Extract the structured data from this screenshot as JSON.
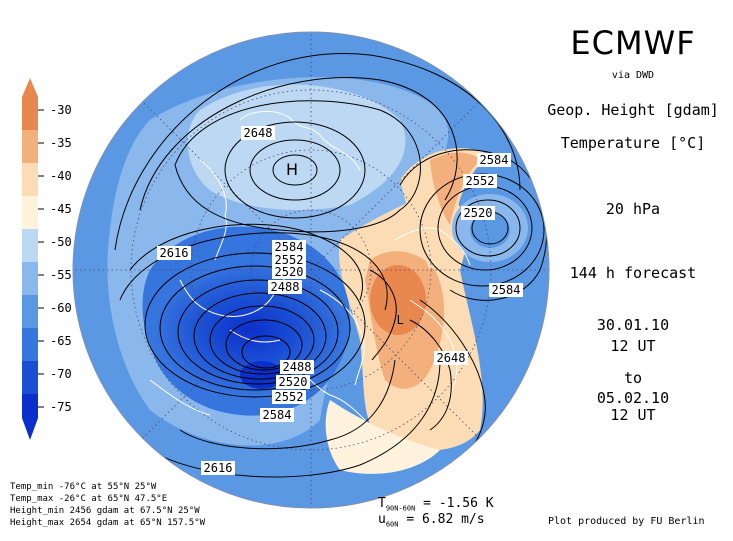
{
  "header": {
    "title": "ECMWF",
    "source": "via DWD",
    "field1": "Geop. Height [gdam]",
    "field2": "Temperature [°C]",
    "level": "20 hPa",
    "forecast": "144 h forecast",
    "init_date": "30.01.10",
    "init_time": "12 UT",
    "to": "to",
    "valid_date": "05.02.10",
    "valid_time": "12 UT"
  },
  "colorbar": {
    "labels": [
      "-30",
      "-35",
      "-40",
      "-45",
      "-50",
      "-55",
      "-60",
      "-65",
      "-70",
      "-75"
    ],
    "colors": [
      "#e8884e",
      "#f4b07c",
      "#fcdcb4",
      "#fff3dd",
      "#bcd8f3",
      "#8ab8ec",
      "#5b98e4",
      "#3674de",
      "#1a4fd4",
      "#0b2fcc"
    ]
  },
  "map": {
    "centers": [
      "H",
      "L"
    ],
    "contour_labels": [
      "2648",
      "2616",
      "2584",
      "2552",
      "2520",
      "2488",
      "2488",
      "2520",
      "2552",
      "2584",
      "2616",
      "2584",
      "2552",
      "2520",
      "2584",
      "2648"
    ],
    "colors": {
      "ocean_cold": "#5b98e4",
      "cold_core": "#1a4fd4",
      "warm_core": "#e8884e",
      "coastline": "#ffffff"
    }
  },
  "stats": {
    "temp_min": "Temp_min -76°C at 55°N 25°W",
    "temp_max": "Temp_max -26°C at 65°N 47.5°E",
    "height_min": "Height_min 2456 gdam at 67.5°N 25°W",
    "height_max": "Height_max 2654 gdam at 65°N 157.5°W"
  },
  "diagnostics": {
    "tdiff_prefix": "T",
    "tdiff_sub": "90N-60N",
    "tdiff_value": "= -1.56 K",
    "u_prefix": "u",
    "u_sub": "60N",
    "u_value": "= 6.82 m/s"
  },
  "credit": "Plot produced by FU Berlin"
}
